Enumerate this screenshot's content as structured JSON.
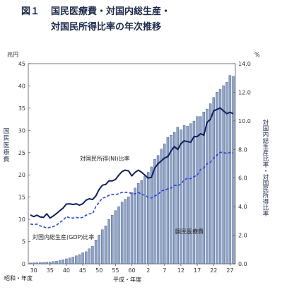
{
  "title": {
    "figure_no": "図１",
    "line1": "国民医療費・対国内総生産・",
    "line2": "対国民所得比率の年次推移"
  },
  "chart_data": {
    "type": "bar",
    "left_axis": {
      "unit": "兆円",
      "label": "国民医療費",
      "ylim": [
        0,
        45
      ],
      "ticks": [
        "0",
        "5",
        "10",
        "15",
        "20",
        "25",
        "30",
        "35",
        "40",
        "45"
      ]
    },
    "right_axis": {
      "unit": "%",
      "label": "対国内総生産比率・対国民所得比率",
      "ylim": [
        0,
        14
      ],
      "ticks": [
        "0.0",
        "2.0",
        "4.0",
        "6.0",
        "8.0",
        "10.0",
        "12.0",
        "14.0"
      ]
    },
    "x_axis": {
      "era_left": "昭和・年度",
      "era_right": "平成・年度",
      "tick_labels": [
        "30",
        "35",
        "40",
        "45",
        "50",
        "55",
        "60",
        "2",
        "7",
        "12",
        "17",
        "22",
        "27"
      ],
      "tick_years": [
        1955,
        1960,
        1965,
        1970,
        1975,
        1980,
        1985,
        1990,
        1995,
        2000,
        2005,
        2010,
        2015
      ]
    },
    "years": [
      1954,
      1955,
      1956,
      1957,
      1958,
      1959,
      1960,
      1961,
      1962,
      1963,
      1964,
      1965,
      1966,
      1967,
      1968,
      1969,
      1970,
      1971,
      1972,
      1973,
      1974,
      1975,
      1976,
      1977,
      1978,
      1979,
      1980,
      1981,
      1982,
      1983,
      1984,
      1985,
      1986,
      1987,
      1988,
      1989,
      1990,
      1991,
      1992,
      1993,
      1994,
      1995,
      1996,
      1997,
      1998,
      1999,
      2000,
      2001,
      2002,
      2003,
      2004,
      2005,
      2006,
      2007,
      2008,
      2009,
      2010,
      2011,
      2012,
      2013,
      2014,
      2015,
      2016
    ],
    "series": [
      {
        "name": "国民医療費",
        "axis": "left",
        "type": "bar",
        "color": "#8fa4c8",
        "values": [
          0.2,
          0.24,
          0.26,
          0.3,
          0.34,
          0.38,
          0.41,
          0.51,
          0.61,
          0.75,
          0.94,
          1.12,
          1.3,
          1.52,
          1.81,
          2.08,
          2.5,
          2.73,
          3.39,
          3.95,
          5.38,
          6.48,
          7.68,
          8.56,
          10.0,
          10.95,
          11.98,
          12.87,
          13.86,
          14.54,
          15.09,
          16.02,
          17.07,
          18.08,
          18.75,
          19.73,
          20.61,
          21.8,
          23.48,
          24.36,
          25.79,
          26.96,
          28.45,
          28.91,
          29.58,
          30.7,
          30.14,
          31.1,
          30.95,
          31.54,
          32.11,
          33.13,
          33.13,
          34.14,
          34.81,
          36.0,
          37.42,
          38.59,
          39.21,
          40.06,
          40.81,
          42.36,
          42.14
        ]
      },
      {
        "name": "対国民所得(NI)比率",
        "axis": "right",
        "type": "line",
        "style": "solid",
        "color": "#0d1f5c",
        "values": [
          3.42,
          3.3,
          3.4,
          3.28,
          3.25,
          3.5,
          3.2,
          3.35,
          3.52,
          3.72,
          3.9,
          4.18,
          4.2,
          4.15,
          4.2,
          4.1,
          4.2,
          4.45,
          4.55,
          4.5,
          4.75,
          5.2,
          5.5,
          5.55,
          5.8,
          5.8,
          5.9,
          6.2,
          6.45,
          6.55,
          6.5,
          6.15,
          6.4,
          6.55,
          6.4,
          6.2,
          6.0,
          6.05,
          6.7,
          7.0,
          7.2,
          7.4,
          7.5,
          7.9,
          8.2,
          8.0,
          8.4,
          8.6,
          8.55,
          8.5,
          8.9,
          8.9,
          9.1,
          9.0,
          9.9,
          10.1,
          10.7,
          10.8,
          10.9,
          10.7,
          10.5,
          10.6,
          10.5
        ]
      },
      {
        "name": "対国内総生産(GDP)比率",
        "axis": "right",
        "type": "line",
        "style": "dashed",
        "color": "#2a45d8",
        "values": [
          2.78,
          2.75,
          2.78,
          2.65,
          2.6,
          2.5,
          2.55,
          2.6,
          2.7,
          2.9,
          3.05,
          3.3,
          3.22,
          3.2,
          3.25,
          3.2,
          3.25,
          3.4,
          3.5,
          3.5,
          4.0,
          4.3,
          4.6,
          4.65,
          4.8,
          4.85,
          4.85,
          4.9,
          5.0,
          5.0,
          5.0,
          4.9,
          4.9,
          5.0,
          4.85,
          4.8,
          4.65,
          4.6,
          4.75,
          4.85,
          5.1,
          5.15,
          5.25,
          5.3,
          5.5,
          5.45,
          5.6,
          5.85,
          6.0,
          5.95,
          6.1,
          6.2,
          6.6,
          6.7,
          7.0,
          7.1,
          7.4,
          7.6,
          7.8,
          7.8,
          7.7,
          7.8,
          7.75
        ]
      }
    ],
    "annotations": [
      "対国民所得(NI)比率",
      "対国内総生産(GDP)比率",
      "国民医療費"
    ],
    "grid": false,
    "legend": "none"
  }
}
